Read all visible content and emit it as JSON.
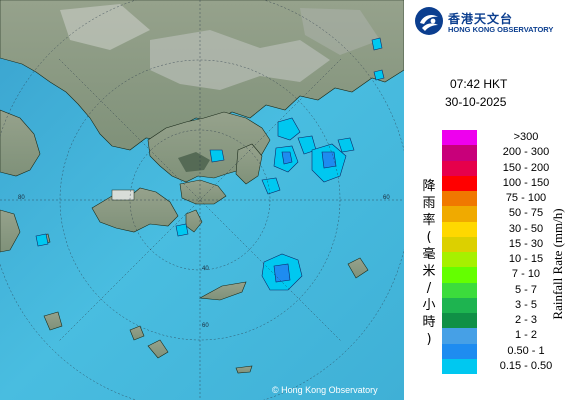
{
  "organization": {
    "name_cn": "香港天文台",
    "name_en": "HONG KONG OBSERVATORY",
    "brand_color": "#0b3e8f"
  },
  "timestamp": {
    "time": "07:42 HKT",
    "date": "30-10-2025"
  },
  "map": {
    "copyright": "© Hong Kong Observatory",
    "range_ring_labels": [
      "40",
      "60",
      "80"
    ],
    "sea_color": "#48b9de",
    "land_color": "#8a9a82"
  },
  "legend": {
    "title_cn": "降雨率(毫米/小時)",
    "title_en": "Rainfall Rate (mm/h)",
    "items": [
      {
        "label": ">300",
        "color": "#ee00ee"
      },
      {
        "label": "200 - 300",
        "color": "#c8007a"
      },
      {
        "label": "150 - 200",
        "color": "#e6004b"
      },
      {
        "label": "100 - 150",
        "color": "#ff0000"
      },
      {
        "label": "75 - 100",
        "color": "#f07800"
      },
      {
        "label": "50 - 75",
        "color": "#f0aa00"
      },
      {
        "label": "30 - 50",
        "color": "#ffd800"
      },
      {
        "label": "15 - 30",
        "color": "#dcd000"
      },
      {
        "label": "10 - 15",
        "color": "#a6f000"
      },
      {
        "label": "7 - 10",
        "color": "#64ff00"
      },
      {
        "label": "5 - 7",
        "color": "#3cdc3c"
      },
      {
        "label": "3 - 5",
        "color": "#1eb450"
      },
      {
        "label": "2 - 3",
        "color": "#109046"
      },
      {
        "label": "1 - 2",
        "color": "#46a0e6"
      },
      {
        "label": "0.50 - 1",
        "color": "#1e8cf0"
      },
      {
        "label": "0.15 - 0.50",
        "color": "#00c8f0"
      }
    ]
  }
}
